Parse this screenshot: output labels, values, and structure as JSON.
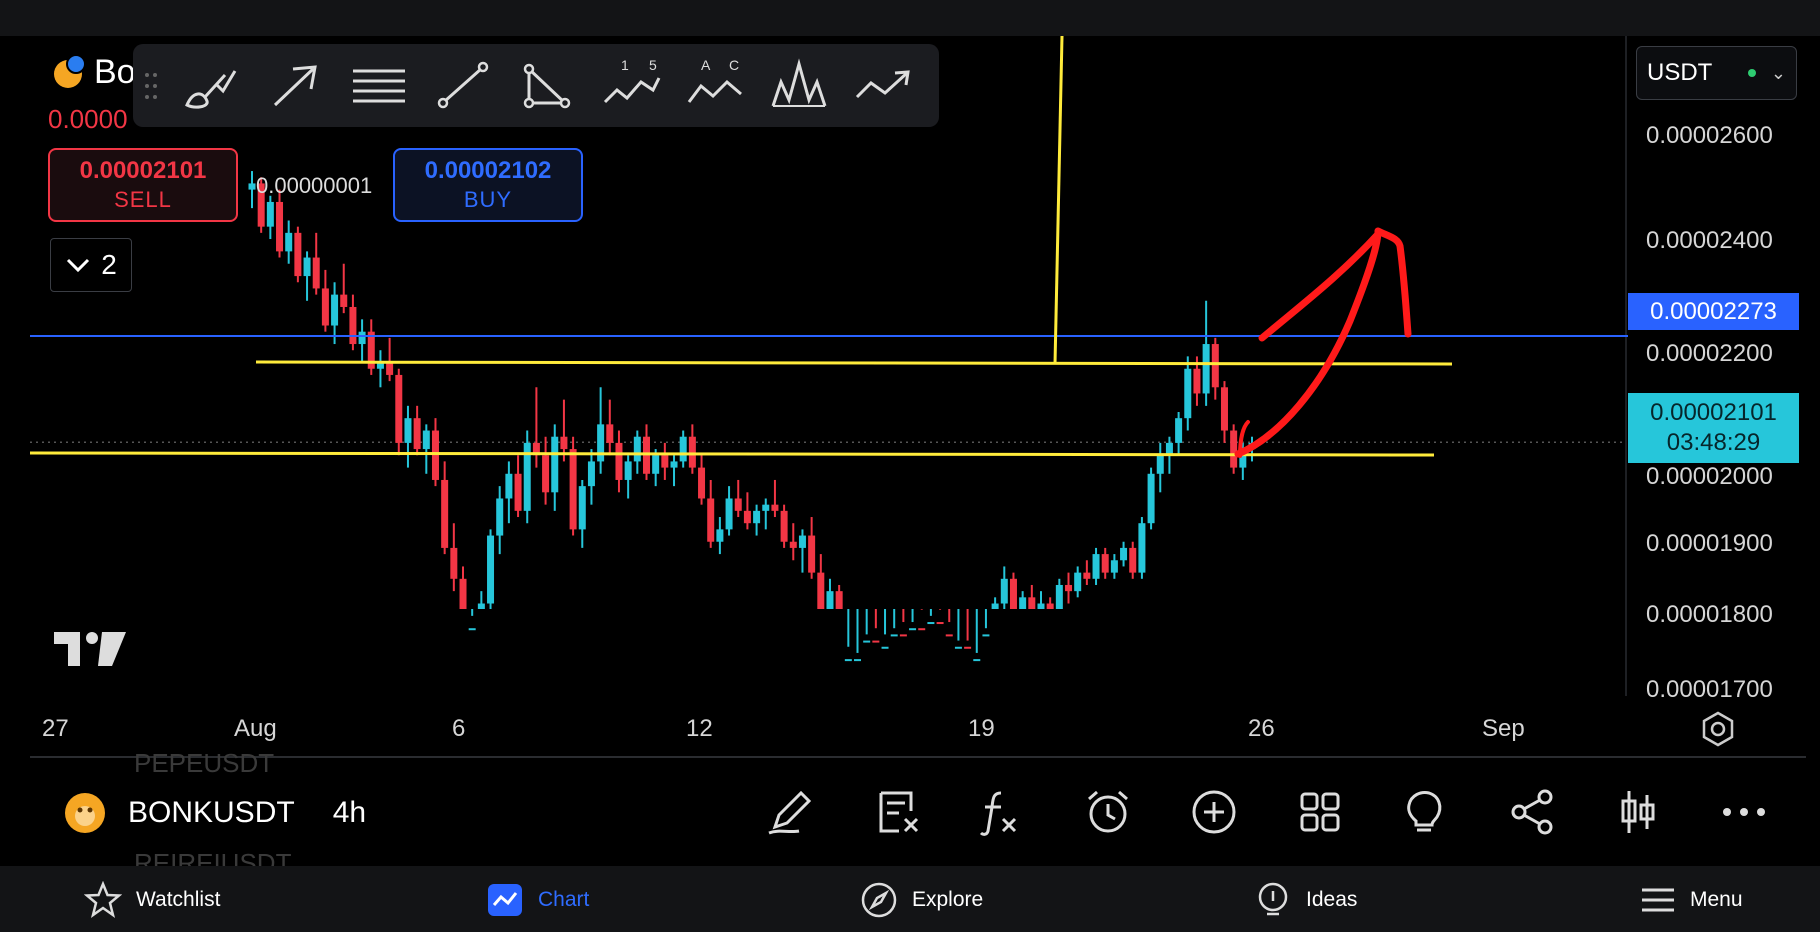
{
  "symbol": {
    "ticker_partial": "Bo",
    "header_price_partial": "0.0000",
    "name": "BONKUSDT",
    "interval": "4h"
  },
  "trade": {
    "sell_price": "0.00002101",
    "sell_label": "SELL",
    "buy_price": "0.00002102",
    "buy_label": "BUY",
    "spread": "0.00000001"
  },
  "collapse_count": "2",
  "currency": "USDT",
  "price_scale": {
    "labels": [
      "0.00002600",
      "0.00002400",
      "0.00002200",
      "0.00002000",
      "0.00001900",
      "0.00001800",
      "0.00001700"
    ],
    "last_price": "0.00002273",
    "current_price": "0.00002101",
    "countdown": "03:48:29"
  },
  "time_scale": {
    "labels": [
      "27",
      "Aug",
      "6",
      "12",
      "19",
      "26",
      "Sep"
    ]
  },
  "ghost_symbols": [
    "PEPEUSDT",
    "REIREIUSDT"
  ],
  "drawing_tools": [
    "brush-icon",
    "arrow-icon",
    "horizontal-lines-icon",
    "trend-line-icon",
    "triangle-icon",
    "elliott-wave-icon",
    "abcd-pattern-icon",
    "head-shoulders-icon",
    "forecast-icon"
  ],
  "drawing_labels": {
    "wave_1": "1",
    "wave_5": "5",
    "abcd_a": "A",
    "abcd_c": "C"
  },
  "bottom_tools": [
    "pencil-icon",
    "remove-drawings-icon",
    "indicators-icon",
    "alert-icon",
    "add-icon",
    "layout-grid-icon",
    "ideas-bulb-icon",
    "share-icon",
    "chart-type-icon",
    "more-icon"
  ],
  "nav": {
    "watchlist": "Watchlist",
    "chart": "Chart",
    "explore": "Explore",
    "ideas": "Ideas",
    "menu": "Menu"
  },
  "colors": {
    "up": "#26c6da",
    "down": "#f23645",
    "annotation_yellow": "#ffeb3b",
    "annotation_red": "#ff1a1a",
    "last_price_line": "#2962ff"
  },
  "chart_data": {
    "type": "candlestick",
    "x_range": [
      "Jul 27",
      "Sep 1"
    ],
    "ylim": [
      1.7e-05,
      2.65e-05
    ],
    "horizontal_levels": [
      2.273e-05,
      2.19e-05,
      2.045e-05
    ],
    "candles": [
      [
        2.51e-05,
        2.54e-05,
        2.48e-05,
        2.52e-05
      ],
      [
        2.52e-05,
        2.53e-05,
        2.44e-05,
        2.45e-05
      ],
      [
        2.45e-05,
        2.5e-05,
        2.43e-05,
        2.49e-05
      ],
      [
        2.49e-05,
        2.51e-05,
        2.4e-05,
        2.41e-05
      ],
      [
        2.41e-05,
        2.46e-05,
        2.39e-05,
        2.44e-05
      ],
      [
        2.44e-05,
        2.45e-05,
        2.36e-05,
        2.37e-05
      ],
      [
        2.37e-05,
        2.41e-05,
        2.33e-05,
        2.4e-05
      ],
      [
        2.4e-05,
        2.44e-05,
        2.34e-05,
        2.35e-05
      ],
      [
        2.35e-05,
        2.38e-05,
        2.28e-05,
        2.29e-05
      ],
      [
        2.29e-05,
        2.36e-05,
        2.26e-05,
        2.34e-05
      ],
      [
        2.34e-05,
        2.39e-05,
        2.31e-05,
        2.32e-05
      ],
      [
        2.32e-05,
        2.34e-05,
        2.25e-05,
        2.26e-05
      ],
      [
        2.26e-05,
        2.3e-05,
        2.23e-05,
        2.28e-05
      ],
      [
        2.28e-05,
        2.3e-05,
        2.21e-05,
        2.22e-05
      ],
      [
        2.22e-05,
        2.25e-05,
        2.19e-05,
        2.23e-05
      ],
      [
        2.23e-05,
        2.27e-05,
        2.2e-05,
        2.21e-05
      ],
      [
        2.21e-05,
        2.22e-05,
        2.08e-05,
        2.1e-05
      ],
      [
        2.1e-05,
        2.16e-05,
        2.06e-05,
        2.14e-05
      ],
      [
        2.14e-05,
        2.16e-05,
        2.08e-05,
        2.09e-05
      ],
      [
        2.09e-05,
        2.13e-05,
        2.05e-05,
        2.12e-05
      ],
      [
        2.12e-05,
        2.14e-05,
        2.03e-05,
        2.04e-05
      ],
      [
        2.04e-05,
        2.07e-05,
        1.92e-05,
        1.93e-05
      ],
      [
        1.93e-05,
        1.97e-05,
        1.86e-05,
        1.88e-05
      ],
      [
        1.88e-05,
        1.9e-05,
        1.74e-05,
        1.76e-05
      ],
      [
        1.76e-05,
        1.82e-05,
        1.71e-05,
        1.8e-05
      ],
      [
        1.8e-05,
        1.86e-05,
        1.77e-05,
        1.84e-05
      ],
      [
        1.84e-05,
        1.96e-05,
        1.82e-05,
        1.95e-05
      ],
      [
        1.95e-05,
        2.03e-05,
        1.92e-05,
        2.01e-05
      ],
      [
        2.01e-05,
        2.07e-05,
        1.97e-05,
        2.05e-05
      ],
      [
        2.05e-05,
        2.08e-05,
        1.98e-05,
        1.99e-05
      ],
      [
        1.99e-05,
        2.12e-05,
        1.97e-05,
        2.1e-05
      ],
      [
        2.1e-05,
        2.19e-05,
        2.06e-05,
        2.08e-05
      ],
      [
        2.08e-05,
        2.11e-05,
        2e-05,
        2.02e-05
      ],
      [
        2.02e-05,
        2.13e-05,
        1.99e-05,
        2.11e-05
      ],
      [
        2.11e-05,
        2.17e-05,
        2.07e-05,
        2.09e-05
      ],
      [
        2.09e-05,
        2.11e-05,
        1.95e-05,
        1.96e-05
      ],
      [
        1.96e-05,
        2.04e-05,
        1.93e-05,
        2.03e-05
      ],
      [
        2.03e-05,
        2.09e-05,
        2e-05,
        2.07e-05
      ],
      [
        2.07e-05,
        2.19e-05,
        2.05e-05,
        2.13e-05
      ],
      [
        2.13e-05,
        2.17e-05,
        2.08e-05,
        2.1e-05
      ],
      [
        2.1e-05,
        2.12e-05,
        2.02e-05,
        2.04e-05
      ],
      [
        2.04e-05,
        2.08e-05,
        2.01e-05,
        2.07e-05
      ],
      [
        2.07e-05,
        2.12e-05,
        2.05e-05,
        2.11e-05
      ],
      [
        2.11e-05,
        2.13e-05,
        2.04e-05,
        2.05e-05
      ],
      [
        2.05e-05,
        2.09e-05,
        2.03e-05,
        2.08e-05
      ],
      [
        2.08e-05,
        2.1e-05,
        2.04e-05,
        2.06e-05
      ],
      [
        2.06e-05,
        2.08e-05,
        2.03e-05,
        2.07e-05
      ],
      [
        2.07e-05,
        2.12e-05,
        2.06e-05,
        2.11e-05
      ],
      [
        2.11e-05,
        2.13e-05,
        2.05e-05,
        2.06e-05
      ],
      [
        2.06e-05,
        2.08e-05,
        2e-05,
        2.01e-05
      ],
      [
        2.01e-05,
        2.04e-05,
        1.93e-05,
        1.94e-05
      ],
      [
        1.94e-05,
        1.98e-05,
        1.92e-05,
        1.96e-05
      ],
      [
        1.96e-05,
        2.03e-05,
        1.95e-05,
        2.01e-05
      ],
      [
        2.01e-05,
        2.04e-05,
        1.98e-05,
        1.99e-05
      ],
      [
        1.99e-05,
        2.02e-05,
        1.96e-05,
        1.97e-05
      ],
      [
        1.97e-05,
        2e-05,
        1.95e-05,
        1.99e-05
      ],
      [
        1.99e-05,
        2.01e-05,
        1.96e-05,
        2e-05
      ],
      [
        2e-05,
        2.04e-05,
        1.98e-05,
        1.99e-05
      ],
      [
        1.99e-05,
        2e-05,
        1.93e-05,
        1.94e-05
      ],
      [
        1.94e-05,
        1.97e-05,
        1.91e-05,
        1.93e-05
      ],
      [
        1.93e-05,
        1.96e-05,
        1.89e-05,
        1.95e-05
      ],
      [
        1.95e-05,
        1.98e-05,
        1.88e-05,
        1.89e-05
      ],
      [
        1.89e-05,
        1.92e-05,
        1.82e-05,
        1.83e-05
      ],
      [
        1.83e-05,
        1.88e-05,
        1.81e-05,
        1.86e-05
      ],
      [
        1.86e-05,
        1.87e-05,
        1.72e-05,
        1.73e-05
      ],
      [
        1.73e-05,
        1.77e-05,
        1.71e-05,
        1.75e-05
      ],
      [
        1.75e-05,
        1.76e-05,
        1.74e-05,
        1.75e-05
      ],
      [
        1.75e-05,
        1.79e-05,
        1.73e-05,
        1.78e-05
      ],
      [
        1.78e-05,
        1.8e-05,
        1.75e-05,
        1.76e-05
      ],
      [
        1.76e-05,
        1.79e-05,
        1.74e-05,
        1.77e-05
      ],
      [
        1.77e-05,
        1.8e-05,
        1.75e-05,
        1.79e-05
      ],
      [
        1.79e-05,
        1.81e-05,
        1.76e-05,
        1.77e-05
      ],
      [
        1.77e-05,
        1.81e-05,
        1.76e-05,
        1.8e-05
      ],
      [
        1.8e-05,
        1.83e-05,
        1.78e-05,
        1.79e-05
      ],
      [
        1.79e-05,
        1.82e-05,
        1.77e-05,
        1.81e-05
      ],
      [
        1.81e-05,
        1.83e-05,
        1.78e-05,
        1.79e-05
      ],
      [
        1.79e-05,
        1.81e-05,
        1.74e-05,
        1.75e-05
      ],
      [
        1.75e-05,
        1.78e-05,
        1.72e-05,
        1.77e-05
      ],
      [
        1.77e-05,
        1.78e-05,
        1.72e-05,
        1.73e-05
      ],
      [
        1.73e-05,
        1.76e-05,
        1.71e-05,
        1.75e-05
      ],
      [
        1.75e-05,
        1.8e-05,
        1.73e-05,
        1.79e-05
      ],
      [
        1.79e-05,
        1.85e-05,
        1.77e-05,
        1.84e-05
      ],
      [
        1.84e-05,
        1.9e-05,
        1.82e-05,
        1.88e-05
      ],
      [
        1.88e-05,
        1.89e-05,
        1.81e-05,
        1.82e-05
      ],
      [
        1.82e-05,
        1.86e-05,
        1.8e-05,
        1.85e-05
      ],
      [
        1.85e-05,
        1.87e-05,
        1.81e-05,
        1.83e-05
      ],
      [
        1.83e-05,
        1.86e-05,
        1.8e-05,
        1.84e-05
      ],
      [
        1.84e-05,
        1.85e-05,
        1.8e-05,
        1.81e-05
      ],
      [
        1.81e-05,
        1.88e-05,
        1.79e-05,
        1.87e-05
      ],
      [
        1.87e-05,
        1.89e-05,
        1.84e-05,
        1.86e-05
      ],
      [
        1.86e-05,
        1.9e-05,
        1.85e-05,
        1.89e-05
      ],
      [
        1.89e-05,
        1.91e-05,
        1.87e-05,
        1.88e-05
      ],
      [
        1.88e-05,
        1.93e-05,
        1.87e-05,
        1.92e-05
      ],
      [
        1.92e-05,
        1.93e-05,
        1.88e-05,
        1.89e-05
      ],
      [
        1.89e-05,
        1.92e-05,
        1.88e-05,
        1.91e-05
      ],
      [
        1.91e-05,
        1.94e-05,
        1.9e-05,
        1.93e-05
      ],
      [
        1.93e-05,
        1.94e-05,
        1.88e-05,
        1.89e-05
      ],
      [
        1.89e-05,
        1.98e-05,
        1.88e-05,
        1.97e-05
      ],
      [
        1.97e-05,
        2.06e-05,
        1.96e-05,
        2.05e-05
      ],
      [
        2.05e-05,
        2.1e-05,
        2.02e-05,
        2.08e-05
      ],
      [
        2.08e-05,
        2.11e-05,
        2.05e-05,
        2.1e-05
      ],
      [
        2.1e-05,
        2.15e-05,
        2.08e-05,
        2.14e-05
      ],
      [
        2.14e-05,
        2.24e-05,
        2.12e-05,
        2.22e-05
      ],
      [
        2.22e-05,
        2.24e-05,
        2.16e-05,
        2.18e-05
      ],
      [
        2.18e-05,
        2.33e-05,
        2.16e-05,
        2.26e-05
      ],
      [
        2.26e-05,
        2.27e-05,
        2.17e-05,
        2.19e-05
      ],
      [
        2.19e-05,
        2.2e-05,
        2.1e-05,
        2.12e-05
      ],
      [
        2.12e-05,
        2.13e-05,
        2.05e-05,
        2.06e-05
      ],
      [
        2.06e-05,
        2.1e-05,
        2.04e-05,
        2.09e-05
      ],
      [
        2.09e-05,
        2.11e-05,
        2.07e-05,
        2.1e-05
      ]
    ]
  }
}
